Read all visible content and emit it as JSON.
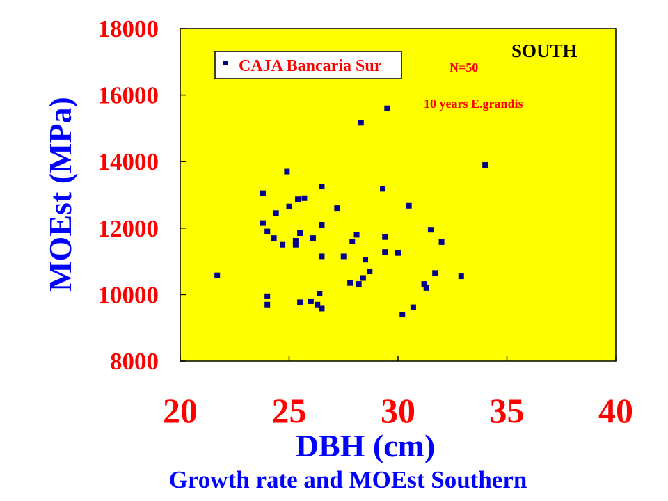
{
  "chart_data": {
    "type": "scatter",
    "xlabel": "DBH (cm)",
    "ylabel": "MOEst (MPa)",
    "caption": "Growth rate and MOEst Southern",
    "xlim": [
      20,
      40
    ],
    "ylim": [
      8000,
      18000
    ],
    "x_ticks": [
      "20",
      "25",
      "30",
      "35",
      "40"
    ],
    "y_ticks": [
      "18000",
      "16000",
      "14000",
      "12000",
      "10000",
      "8000"
    ],
    "grid": false,
    "plot_background": "#ffff00",
    "marker_color": "#00008b",
    "legend": {
      "placement": "top-left",
      "entries": [
        "CAJA Bancaria Sur"
      ]
    },
    "annotations": {
      "region": "SOUTH",
      "sample_size": "N=50",
      "description": "10 years E.grandis"
    },
    "series": [
      {
        "name": "CAJA Bancaria Sur",
        "points": [
          [
            21.7,
            10580
          ],
          [
            23.8,
            13050
          ],
          [
            23.8,
            12150
          ],
          [
            24.0,
            11900
          ],
          [
            24.0,
            9950
          ],
          [
            24.0,
            9700
          ],
          [
            24.3,
            11700
          ],
          [
            24.4,
            12450
          ],
          [
            24.7,
            11500
          ],
          [
            24.9,
            13700
          ],
          [
            25.0,
            12650
          ],
          [
            25.3,
            11500
          ],
          [
            25.3,
            11620
          ],
          [
            25.4,
            12870
          ],
          [
            25.5,
            11850
          ],
          [
            25.5,
            9770
          ],
          [
            25.7,
            12900
          ],
          [
            26.0,
            9800
          ],
          [
            26.1,
            11700
          ],
          [
            26.3,
            9700
          ],
          [
            26.4,
            10030
          ],
          [
            26.5,
            9580
          ],
          [
            26.5,
            11150
          ],
          [
            26.5,
            12100
          ],
          [
            26.5,
            13250
          ],
          [
            27.2,
            12600
          ],
          [
            27.5,
            11150
          ],
          [
            27.8,
            10350
          ],
          [
            27.9,
            11600
          ],
          [
            28.1,
            11800
          ],
          [
            28.2,
            10320
          ],
          [
            28.3,
            15170
          ],
          [
            28.4,
            10500
          ],
          [
            28.5,
            11050
          ],
          [
            28.7,
            10700
          ],
          [
            29.3,
            13180
          ],
          [
            29.4,
            11730
          ],
          [
            29.4,
            11280
          ],
          [
            29.5,
            15600
          ],
          [
            30.0,
            11250
          ],
          [
            30.2,
            9400
          ],
          [
            30.5,
            12670
          ],
          [
            30.7,
            9620
          ],
          [
            31.2,
            10320
          ],
          [
            31.3,
            10200
          ],
          [
            31.5,
            11950
          ],
          [
            31.7,
            10650
          ],
          [
            32.0,
            11580
          ],
          [
            32.9,
            10550
          ],
          [
            34.0,
            13900
          ]
        ]
      }
    ]
  }
}
